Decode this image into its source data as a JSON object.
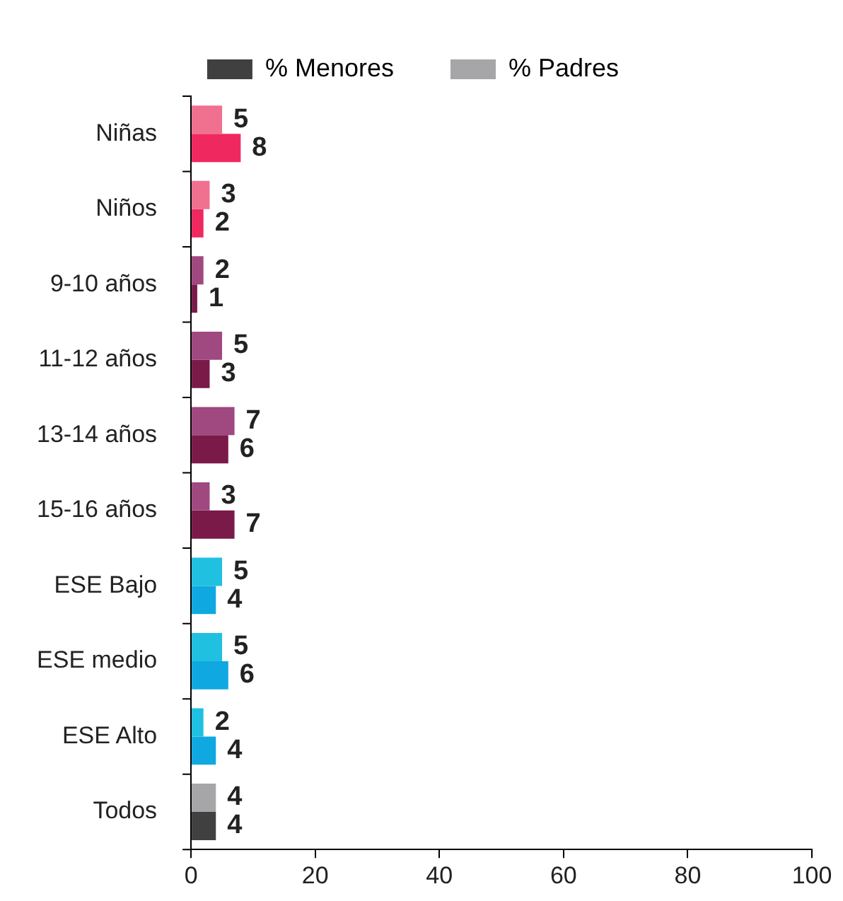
{
  "chart_data": {
    "type": "bar",
    "orientation": "horizontal",
    "categories": [
      "Niñas",
      "Niños",
      "9-10 años",
      "11-12 años",
      "13-14 años",
      "15-16 años",
      "ESE Bajo",
      "ESE medio",
      "ESE Alto",
      "Todos"
    ],
    "series": [
      {
        "name": "% Padres",
        "color": "#a6a6a8",
        "colors": [
          "#f07090",
          "#f07090",
          "#a04880",
          "#a04880",
          "#a04880",
          "#a04880",
          "#20c0e0",
          "#20c0e0",
          "#20c0e0",
          "#a6a6a8"
        ],
        "values": [
          5,
          3,
          2,
          5,
          7,
          3,
          5,
          5,
          2,
          4
        ]
      },
      {
        "name": "% Menores",
        "color": "#404040",
        "colors": [
          "#f02860",
          "#f02860",
          "#7a1a48",
          "#7a1a48",
          "#7a1a48",
          "#7a1a48",
          "#10a8e0",
          "#10a8e0",
          "#10a8e0",
          "#404040"
        ],
        "values": [
          8,
          2,
          1,
          3,
          6,
          7,
          4,
          6,
          4,
          4
        ]
      }
    ],
    "xlim": [
      0,
      100
    ],
    "xticks": [
      0,
      20,
      40,
      60,
      80,
      100
    ],
    "grid": false,
    "legend": "top",
    "data_labels": true
  }
}
